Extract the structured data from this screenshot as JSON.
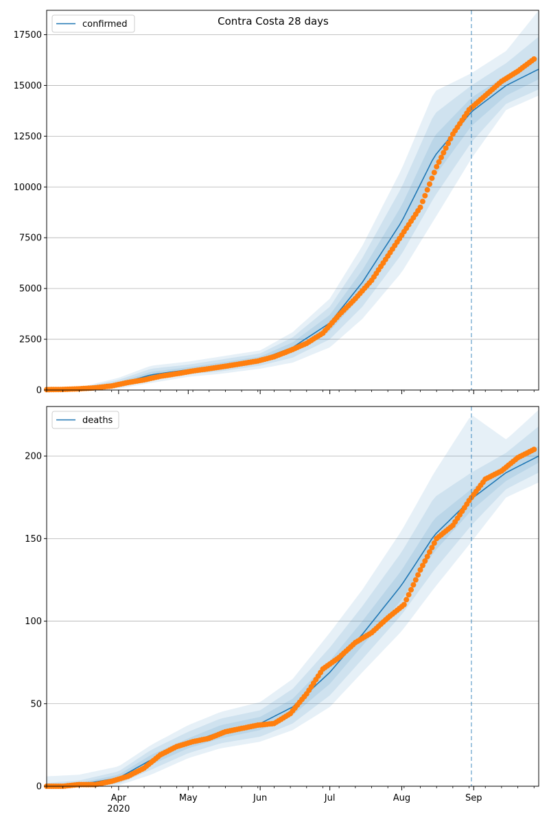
{
  "chart_data": [
    {
      "type": "line",
      "title": "Contra Costa 28 days",
      "legend": {
        "position": "top-left",
        "entries": [
          "confirmed"
        ]
      },
      "grid": "horizontal",
      "xlabel": "",
      "ylabel": "",
      "xlim": [
        "2020-03-01",
        "2020-09-29"
      ],
      "ylim": [
        0,
        18700
      ],
      "yticks": [
        0,
        2500,
        5000,
        7500,
        10000,
        12500,
        15000,
        17500
      ],
      "vline": "2020-08-31",
      "series": [
        {
          "name": "confirmed",
          "kind": "model-median",
          "x": [
            "2020-03-01",
            "2020-03-15",
            "2020-04-01",
            "2020-04-15",
            "2020-05-01",
            "2020-05-15",
            "2020-06-01",
            "2020-06-15",
            "2020-07-01",
            "2020-07-15",
            "2020-08-01",
            "2020-08-15",
            "2020-08-31",
            "2020-09-15",
            "2020-09-29"
          ],
          "values": [
            0,
            60,
            300,
            750,
            1000,
            1200,
            1500,
            2100,
            3300,
            5300,
            8300,
            11500,
            13700,
            15000,
            15800
          ],
          "bands": {
            "inner": {
              "lower": [
                0,
                40,
                200,
                600,
                880,
                1050,
                1350,
                1850,
                2900,
                4700,
                7500,
                10500,
                13000,
                14500,
                15300
              ],
              "upper": [
                0,
                80,
                400,
                900,
                1120,
                1350,
                1650,
                2350,
                3700,
                5900,
                9100,
                12500,
                14400,
                15500,
                16400
              ]
            },
            "middle": {
              "lower": [
                0,
                25,
                130,
                480,
                770,
                920,
                1200,
                1600,
                2500,
                4100,
                6700,
                9500,
                12200,
                14100,
                14800
              ],
              "upper": [
                0,
                100,
                500,
                1050,
                1250,
                1500,
                1800,
                2600,
                4100,
                6500,
                10000,
                13600,
                15000,
                16100,
                17400
              ]
            },
            "outer": {
              "lower": [
                0,
                10,
                70,
                350,
                650,
                800,
                1050,
                1350,
                2100,
                3500,
                5800,
                8400,
                11400,
                13800,
                14500
              ],
              "upper": [
                0,
                130,
                600,
                1200,
                1400,
                1650,
                1950,
                2850,
                4500,
                7100,
                10900,
                14700,
                15600,
                16700,
                18700
              ]
            }
          }
        },
        {
          "name": "",
          "kind": "observed",
          "x": [
            "2020-03-01",
            "2020-03-08",
            "2020-03-15",
            "2020-03-22",
            "2020-03-29",
            "2020-04-05",
            "2020-04-12",
            "2020-04-19",
            "2020-04-26",
            "2020-05-03",
            "2020-05-10",
            "2020-05-17",
            "2020-05-24",
            "2020-05-31",
            "2020-06-07",
            "2020-06-14",
            "2020-06-21",
            "2020-06-28",
            "2020-07-05",
            "2020-07-12",
            "2020-07-19",
            "2020-07-26",
            "2020-08-02",
            "2020-08-09",
            "2020-08-16",
            "2020-08-23",
            "2020-08-30",
            "2020-09-06",
            "2020-09-13",
            "2020-09-20",
            "2020-09-27"
          ],
          "values": [
            20,
            30,
            60,
            110,
            200,
            370,
            500,
            680,
            800,
            940,
            1050,
            1170,
            1300,
            1430,
            1640,
            1950,
            2300,
            2800,
            3700,
            4500,
            5400,
            6600,
            7800,
            9000,
            11000,
            12600,
            13800,
            14500,
            15200,
            15700,
            16300
          ]
        }
      ]
    },
    {
      "type": "line",
      "title": "",
      "legend": {
        "position": "top-left",
        "entries": [
          "deaths"
        ]
      },
      "grid": "horizontal",
      "xlabel": "",
      "ylabel": "",
      "xlim": [
        "2020-03-01",
        "2020-09-29"
      ],
      "ylim": [
        0,
        230
      ],
      "yticks": [
        0,
        50,
        100,
        150,
        200
      ],
      "xticks": [
        "Apr",
        "May",
        "Jun",
        "Jul",
        "Aug",
        "Sep"
      ],
      "xtick_year": "2020",
      "vline": "2020-08-31",
      "series": [
        {
          "name": "deaths",
          "kind": "model-median",
          "x": [
            "2020-03-01",
            "2020-03-15",
            "2020-04-01",
            "2020-04-15",
            "2020-05-01",
            "2020-05-15",
            "2020-06-01",
            "2020-06-15",
            "2020-07-01",
            "2020-07-15",
            "2020-08-01",
            "2020-08-15",
            "2020-08-31",
            "2020-09-15",
            "2020-09-29"
          ],
          "values": [
            0,
            1,
            5,
            16,
            26,
            33,
            38,
            48,
            69,
            92,
            122,
            152,
            174,
            190,
            200
          ],
          "bands": {
            "inner": {
              "lower": [
                0,
                0.5,
                3,
                13,
                23,
                29,
                34,
                43,
                62,
                85,
                113,
                142,
                167,
                185,
                196
              ],
              "upper": [
                1,
                2,
                7,
                19,
                29,
                37,
                42,
                53,
                76,
                100,
                131,
                162,
                180,
                195,
                206
              ]
            },
            "middle": {
              "lower": [
                0,
                0,
                1.5,
                10,
                20,
                26,
                30,
                38,
                55,
                77,
                104,
                131,
                158,
                180,
                190
              ],
              "upper": [
                2,
                3.5,
                9,
                22,
                33,
                41,
                46,
                59,
                84,
                109,
                142,
                175,
                190,
                202,
                218
              ]
            },
            "outer": {
              "lower": [
                0,
                0,
                0.5,
                7,
                17,
                23,
                27,
                34,
                48,
                69,
                94,
                120,
                148,
                175,
                184
              ],
              "upper": [
                6,
                7,
                12,
                25,
                37,
                45,
                51,
                65,
                93,
                119,
                155,
                190,
                225,
                210,
                228
              ]
            }
          }
        },
        {
          "name": "",
          "kind": "observed",
          "x": [
            "2020-03-01",
            "2020-03-08",
            "2020-03-15",
            "2020-03-22",
            "2020-03-29",
            "2020-04-05",
            "2020-04-12",
            "2020-04-19",
            "2020-04-26",
            "2020-05-03",
            "2020-05-10",
            "2020-05-17",
            "2020-05-24",
            "2020-05-31",
            "2020-06-07",
            "2020-06-14",
            "2020-06-21",
            "2020-06-28",
            "2020-07-05",
            "2020-07-12",
            "2020-07-19",
            "2020-07-26",
            "2020-08-02",
            "2020-08-09",
            "2020-08-16",
            "2020-08-23",
            "2020-08-30",
            "2020-09-06",
            "2020-09-13",
            "2020-09-20",
            "2020-09-27"
          ],
          "values": [
            0,
            0,
            1,
            1,
            3,
            6,
            11,
            19,
            24,
            27,
            29,
            33,
            35,
            37,
            38,
            44,
            56,
            71,
            78,
            87,
            93,
            102,
            110,
            131,
            150,
            158,
            173,
            186,
            191,
            199,
            204
          ]
        }
      ]
    }
  ]
}
